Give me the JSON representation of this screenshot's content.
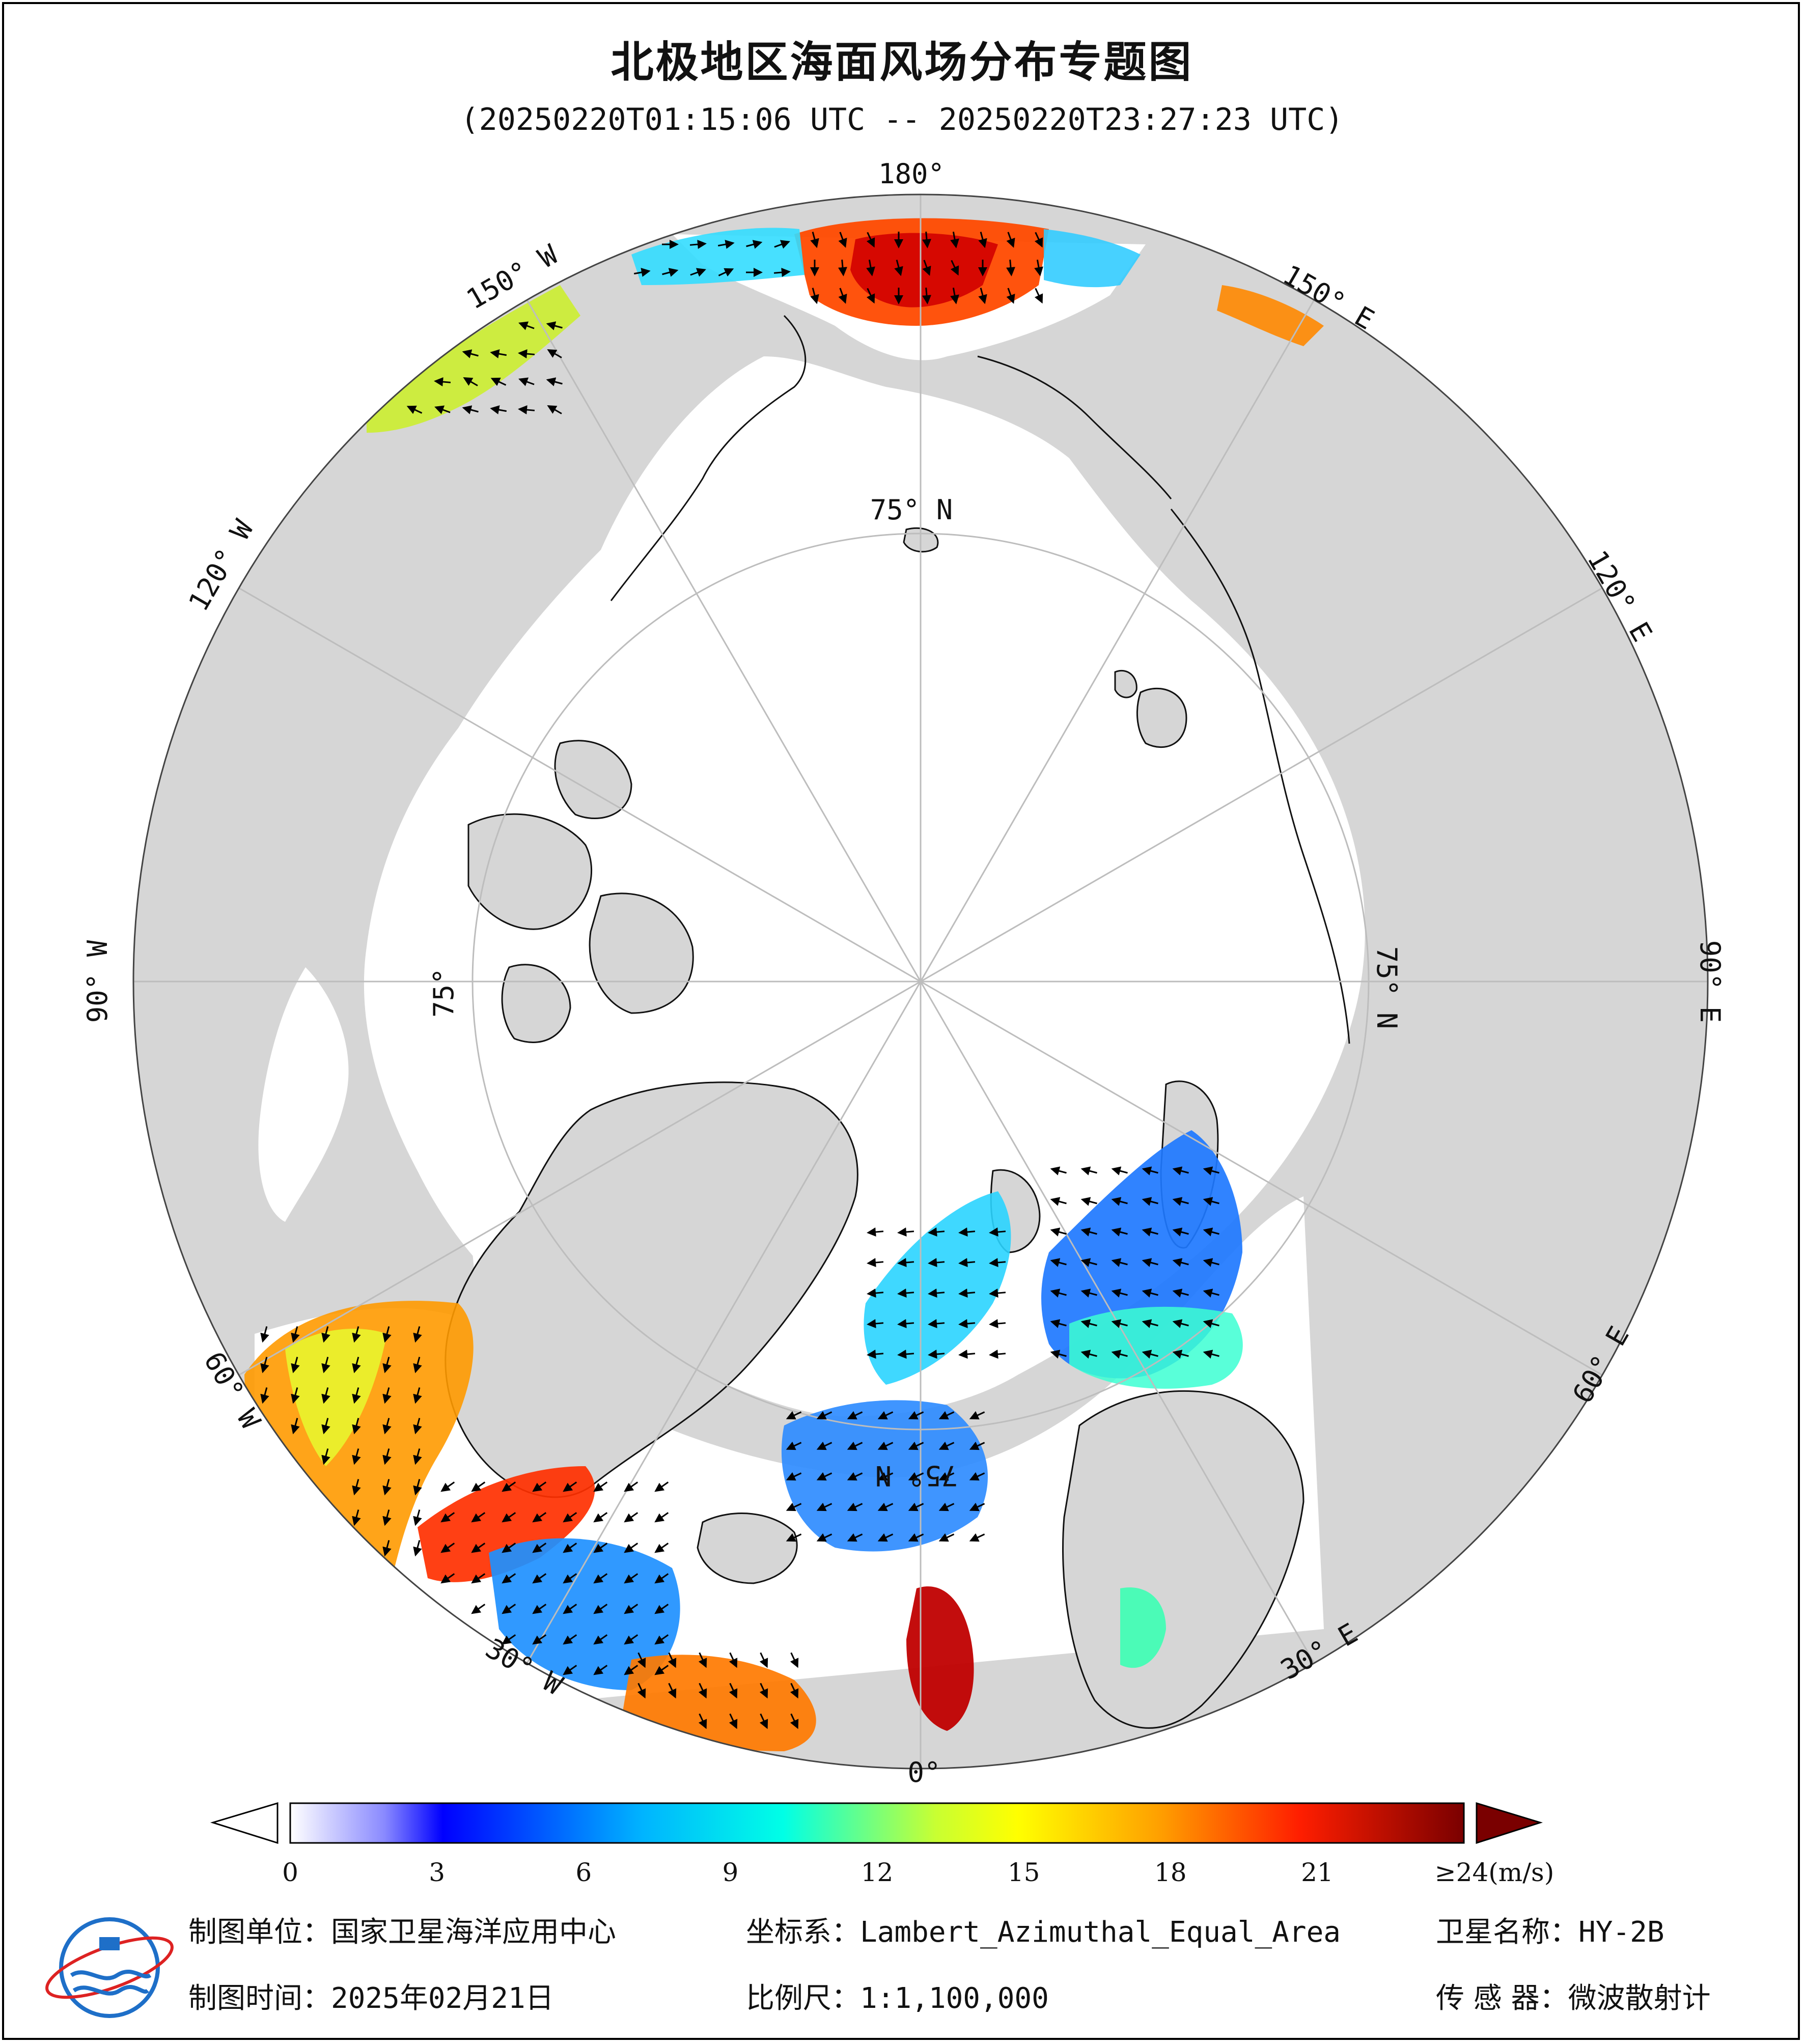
{
  "header": {
    "title": "北极地区海面风场分布专题图",
    "subtitle": "(20250220T01:15:06 UTC -- 20250220T23:27:23 UTC)"
  },
  "map": {
    "projection_label": "Lambert_Azimuthal_Equal_Area",
    "longitude_labels": {
      "top": "180°",
      "bottom": "0°",
      "left": "90° W",
      "right": "90° E",
      "upper_left_150": "150° W",
      "upper_left_120": "120° W",
      "lower_left_60": "60° W",
      "lower_left_30": "30° W",
      "upper_right_150": "150° E",
      "upper_right_120": "120° E",
      "lower_right_60": "60° E",
      "lower_right_30": "30° E"
    },
    "latitude_labels": {
      "top": "75° N",
      "left": "75°",
      "right": "75° N",
      "bottom": "75° N"
    },
    "colors": {
      "land": "#d6d6d6",
      "ocean_no_data": "#ffffff",
      "grid": "#bdbdbd"
    }
  },
  "colorbar": {
    "ticks": [
      "0",
      "3",
      "6",
      "9",
      "12",
      "15",
      "18",
      "21",
      "≥24(m/s)"
    ],
    "tick_values": [
      0,
      3,
      6,
      9,
      12,
      15,
      18,
      21,
      24
    ],
    "min": 0,
    "max": 24,
    "unit": "m/s",
    "stops": [
      "#ffffff",
      "#c8c8ff",
      "#6060ff",
      "#0000ff",
      "#0064ff",
      "#00c8ff",
      "#32ffc8",
      "#c8ff32",
      "#ffff00",
      "#ffaa00",
      "#ff5000",
      "#ff0000",
      "#b40000",
      "#780000"
    ]
  },
  "footer": {
    "unit_label": "制图单位：",
    "unit_value": "国家卫星海洋应用中心",
    "crs_label": "坐标系：",
    "crs_value": "Lambert_Azimuthal_Equal_Area",
    "satellite_label": "卫星名称：",
    "satellite_value": "HY-2B",
    "time_label": "制图时间：",
    "time_value": "2025年02月21日",
    "scale_label": "比例尺：",
    "scale_value": "1:1,100,000",
    "sensor_label": "传 感 器：",
    "sensor_value": "微波散射计"
  }
}
